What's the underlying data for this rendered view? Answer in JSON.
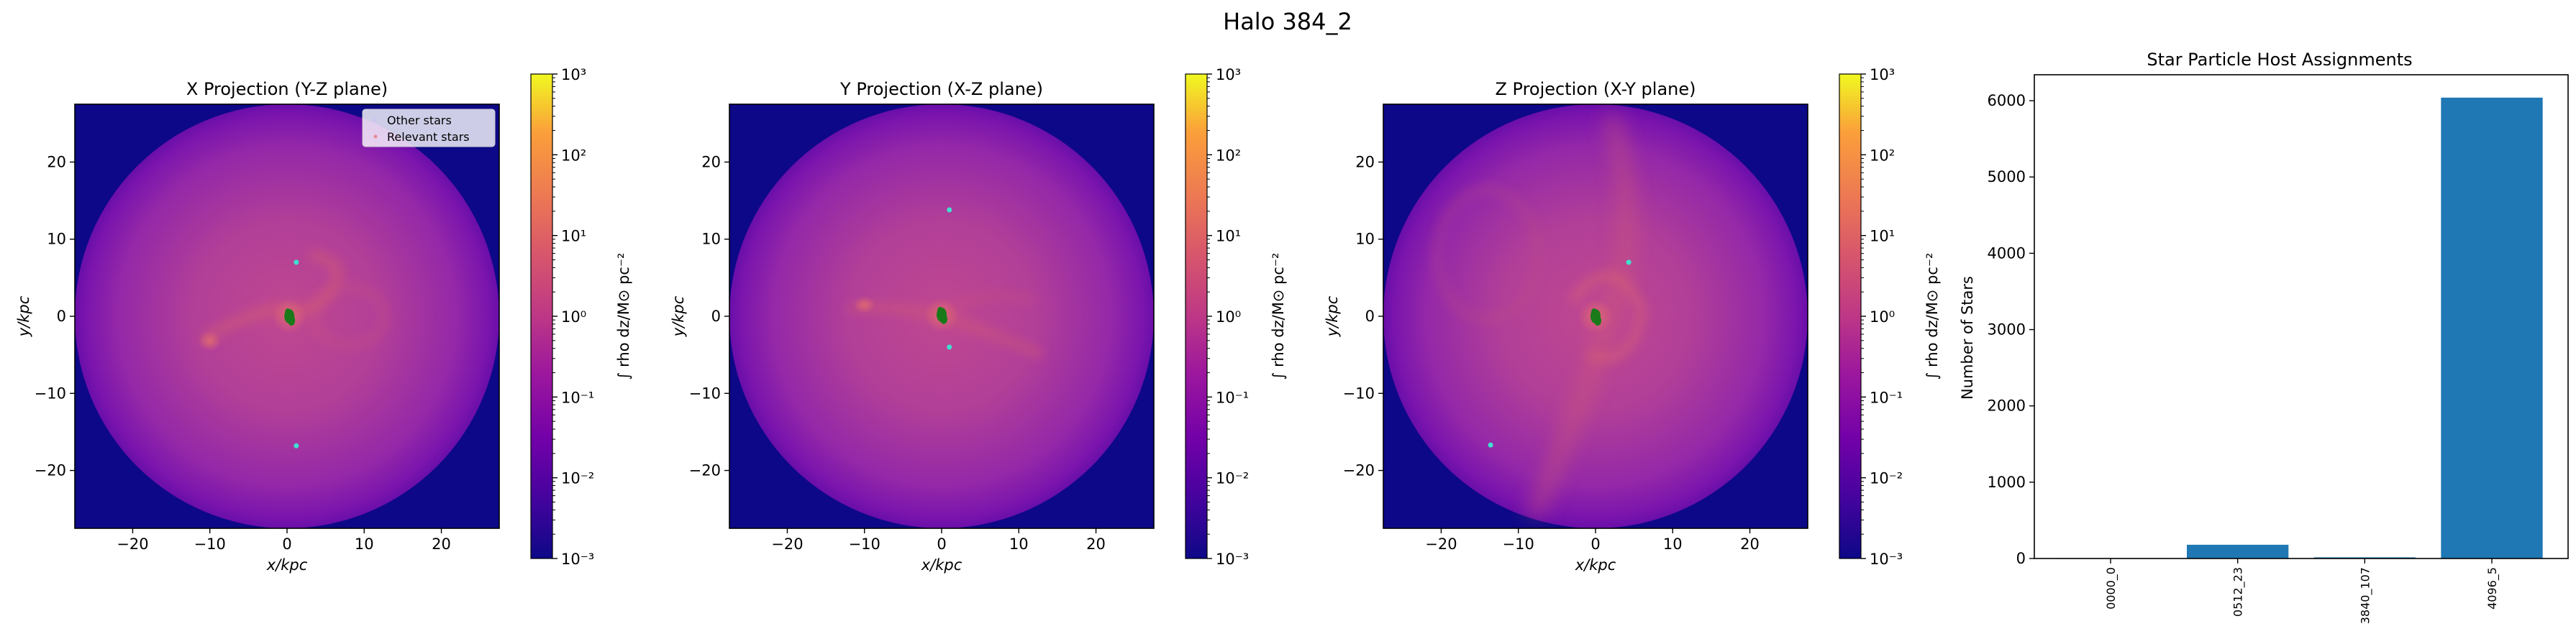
{
  "figure_title": "Halo 384_2",
  "projections": [
    {
      "title": "X Projection (Y-Z plane)",
      "xlabel": "x/kpc",
      "ylabel": "y/kpc",
      "colorbar_label": "∫ rho dz/M⊙ pc⁻²",
      "show_legend": true,
      "nebula": "x",
      "relevant_stars": [
        [
          1.2,
          7.0
        ],
        [
          1.2,
          -16.8
        ]
      ],
      "core": [
        0.3,
        0.0
      ]
    },
    {
      "title": "Y Projection (X-Z plane)",
      "xlabel": "x/kpc",
      "ylabel": "y/kpc",
      "colorbar_label": "∫ rho dz/M⊙ pc⁻²",
      "show_legend": false,
      "nebula": "y",
      "relevant_stars": [
        [
          1.0,
          13.8
        ],
        [
          1.0,
          -4.0
        ]
      ],
      "core": [
        0.0,
        0.2
      ]
    },
    {
      "title": "Z Projection (X-Y plane)",
      "xlabel": "x/kpc",
      "ylabel": "y/kpc",
      "colorbar_label": "∫ rho dz/M⊙ pc⁻²",
      "show_legend": false,
      "nebula": "z",
      "relevant_stars": [
        [
          4.3,
          7.0
        ],
        [
          -13.6,
          -16.7
        ]
      ],
      "core": [
        0.0,
        0.0
      ]
    }
  ],
  "legend": {
    "other": "Other stars",
    "relevant": "Relevant stars"
  },
  "image_axes": {
    "xlim": [
      -27.5,
      27.5
    ],
    "ylim": [
      -27.5,
      27.5
    ],
    "xticks": [
      -20,
      -10,
      0,
      10,
      20
    ],
    "yticks": [
      -20,
      -10,
      0,
      10,
      20
    ],
    "circle_radius": 27.5
  },
  "colorbar": {
    "scale": "log",
    "range": [
      -3,
      3
    ],
    "tick_exponents": [
      -3,
      -2,
      -1,
      0,
      1,
      2,
      3
    ]
  },
  "colors": {
    "background": "#0d0887",
    "other_stars": "#1a7a1a",
    "relevant_stars": "#40e0d0",
    "bar": "#1f77b4"
  },
  "chart_data": {
    "type": "bar",
    "title": "Star Particle Host Assignments",
    "ylabel": "Number of Stars",
    "categories": [
      "0000_0",
      "0512_23",
      "3840_107",
      "4096_5"
    ],
    "values": [
      5,
      180,
      15,
      6040
    ],
    "ylim": [
      0,
      6340
    ],
    "yticks": [
      0,
      1000,
      2000,
      3000,
      4000,
      5000,
      6000
    ]
  }
}
